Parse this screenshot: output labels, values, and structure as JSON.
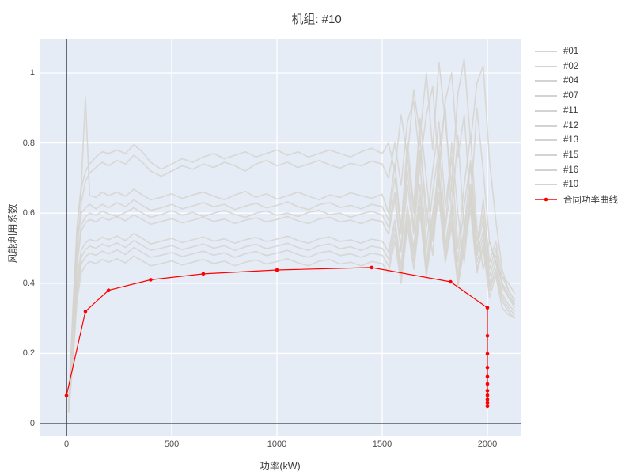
{
  "title": "机组: #10",
  "colors": {
    "page_bg": "#ffffff",
    "plot_bg": "#e5ecf6",
    "grid": "#ffffff",
    "zero_line": "#383e48",
    "gray_series": "#d6d3ce",
    "red_series": "#ff0000",
    "text": "#3b3b3b",
    "tick_text": "#4c4c4c"
  },
  "legend": {
    "items": [
      {
        "label": "#01",
        "type": "gray"
      },
      {
        "label": "#02",
        "type": "gray"
      },
      {
        "label": "#04",
        "type": "gray"
      },
      {
        "label": "#07",
        "type": "gray"
      },
      {
        "label": "#11",
        "type": "gray"
      },
      {
        "label": "#12",
        "type": "gray"
      },
      {
        "label": "#13",
        "type": "gray"
      },
      {
        "label": "#15",
        "type": "gray"
      },
      {
        "label": "#16",
        "type": "gray"
      },
      {
        "label": "#10",
        "type": "gray"
      },
      {
        "label": "合同功率曲线",
        "type": "contract"
      }
    ]
  },
  "chart_data": {
    "type": "line",
    "title": "机组: #10",
    "xlabel": "功率(kW)",
    "ylabel": "风能利用系数",
    "xlim": [
      -128,
      2158
    ],
    "ylim": [
      -0.036,
      1.097
    ],
    "grid": true,
    "legend_position": "right",
    "x_ticks": [
      0,
      500,
      1000,
      1500,
      2000
    ],
    "y_ticks": [
      0,
      0.2,
      0.4,
      0.6,
      0.8,
      1
    ],
    "x": [
      10,
      30,
      50,
      70,
      90,
      110,
      140,
      170,
      200,
      240,
      280,
      320,
      360,
      400,
      450,
      500,
      550,
      600,
      650,
      700,
      750,
      800,
      850,
      900,
      950,
      1000,
      1050,
      1100,
      1150,
      1200,
      1250,
      1300,
      1350,
      1400,
      1450,
      1500,
      1530,
      1560,
      1590,
      1620,
      1650,
      1680,
      1710,
      1740,
      1770,
      1800,
      1830,
      1860,
      1890,
      1920,
      1950,
      1980,
      2010,
      2040,
      2070,
      2100,
      2130
    ],
    "series": [
      {
        "name": "#01",
        "y": [
          0.05,
          0.3,
          0.55,
          0.67,
          0.72,
          0.74,
          0.76,
          0.775,
          0.77,
          0.78,
          0.77,
          0.795,
          0.775,
          0.745,
          0.725,
          0.74,
          0.755,
          0.745,
          0.76,
          0.77,
          0.755,
          0.765,
          0.775,
          0.76,
          0.77,
          0.78,
          0.765,
          0.775,
          0.76,
          0.77,
          0.78,
          0.77,
          0.76,
          0.775,
          0.785,
          0.77,
          0.8,
          0.72,
          0.88,
          0.76,
          0.95,
          0.82,
          1.0,
          0.78,
          1.03,
          0.86,
          0.68,
          0.94,
          1.04,
          0.8,
          0.97,
          1.02,
          0.75,
          0.58,
          0.44,
          0.38,
          0.35
        ]
      },
      {
        "name": "#02",
        "y": [
          0.045,
          0.27,
          0.5,
          0.63,
          0.69,
          0.715,
          0.73,
          0.745,
          0.735,
          0.75,
          0.74,
          0.765,
          0.745,
          0.72,
          0.705,
          0.72,
          0.735,
          0.725,
          0.74,
          0.73,
          0.745,
          0.735,
          0.72,
          0.74,
          0.75,
          0.735,
          0.745,
          0.73,
          0.74,
          0.75,
          0.738,
          0.728,
          0.742,
          0.735,
          0.748,
          0.74,
          0.7,
          0.8,
          0.68,
          0.86,
          0.92,
          0.74,
          0.88,
          0.96,
          0.72,
          0.92,
          1.0,
          0.76,
          0.88,
          0.62,
          0.9,
          0.72,
          0.52,
          0.46,
          0.42,
          0.4,
          0.37
        ]
      },
      {
        "name": "#04",
        "y": [
          0.05,
          0.32,
          0.56,
          0.68,
          0.93,
          0.65,
          0.645,
          0.66,
          0.65,
          0.66,
          0.648,
          0.668,
          0.652,
          0.638,
          0.645,
          0.655,
          0.642,
          0.652,
          0.66,
          0.648,
          0.638,
          0.652,
          0.662,
          0.645,
          0.655,
          0.64,
          0.65,
          0.66,
          0.648,
          0.638,
          0.652,
          0.645,
          0.658,
          0.65,
          0.642,
          0.654,
          0.6,
          0.74,
          0.56,
          0.8,
          0.62,
          0.87,
          0.7,
          0.52,
          0.78,
          0.9,
          0.6,
          0.82,
          0.55,
          0.74,
          0.48,
          0.64,
          0.46,
          0.52,
          0.42,
          0.38,
          0.35
        ]
      },
      {
        "name": "#07",
        "y": [
          0.045,
          0.28,
          0.51,
          0.6,
          0.615,
          0.625,
          0.612,
          0.625,
          0.615,
          0.63,
          0.618,
          0.638,
          0.622,
          0.608,
          0.615,
          0.625,
          0.612,
          0.62,
          0.63,
          0.618,
          0.625,
          0.61,
          0.62,
          0.628,
          0.615,
          0.622,
          0.632,
          0.618,
          0.61,
          0.624,
          0.63,
          0.616,
          0.622,
          0.612,
          0.625,
          0.618,
          0.58,
          0.7,
          0.54,
          0.76,
          0.6,
          0.82,
          0.56,
          0.72,
          0.86,
          0.62,
          0.76,
          0.5,
          0.68,
          0.82,
          0.56,
          0.44,
          0.52,
          0.46,
          0.4,
          0.37,
          0.34
        ]
      },
      {
        "name": "#11",
        "y": [
          0.04,
          0.25,
          0.47,
          0.565,
          0.59,
          0.6,
          0.594,
          0.605,
          0.598,
          0.59,
          0.602,
          0.615,
          0.6,
          0.588,
          0.596,
          0.607,
          0.594,
          0.602,
          0.59,
          0.6,
          0.608,
          0.596,
          0.588,
          0.6,
          0.606,
          0.594,
          0.6,
          0.59,
          0.602,
          0.608,
          0.596,
          0.6,
          0.588,
          0.598,
          0.605,
          0.595,
          0.56,
          0.66,
          0.5,
          0.72,
          0.56,
          0.78,
          0.62,
          0.48,
          0.7,
          0.55,
          0.8,
          0.6,
          0.46,
          0.66,
          0.5,
          0.58,
          0.42,
          0.48,
          0.4,
          0.36,
          0.34
        ]
      },
      {
        "name": "#12",
        "y": [
          0.04,
          0.23,
          0.45,
          0.55,
          0.572,
          0.582,
          0.575,
          0.588,
          0.58,
          0.59,
          0.578,
          0.595,
          0.582,
          0.568,
          0.576,
          0.584,
          0.572,
          0.58,
          0.588,
          0.576,
          0.583,
          0.57,
          0.58,
          0.587,
          0.575,
          0.582,
          0.59,
          0.578,
          0.57,
          0.583,
          0.588,
          0.575,
          0.58,
          0.57,
          0.582,
          0.576,
          0.54,
          0.64,
          0.49,
          0.68,
          0.54,
          0.74,
          0.5,
          0.66,
          0.78,
          0.56,
          0.68,
          0.46,
          0.62,
          0.75,
          0.52,
          0.6,
          0.44,
          0.5,
          0.39,
          0.36,
          0.33
        ]
      },
      {
        "name": "#13",
        "y": [
          0.035,
          0.21,
          0.41,
          0.495,
          0.515,
          0.525,
          0.52,
          0.532,
          0.524,
          0.535,
          0.522,
          0.542,
          0.528,
          0.512,
          0.52,
          0.528,
          0.516,
          0.524,
          0.532,
          0.52,
          0.527,
          0.514,
          0.524,
          0.531,
          0.519,
          0.526,
          0.534,
          0.522,
          0.514,
          0.527,
          0.532,
          0.519,
          0.524,
          0.514,
          0.526,
          0.52,
          0.49,
          0.58,
          0.45,
          0.62,
          0.5,
          0.68,
          0.46,
          0.6,
          0.72,
          0.51,
          0.62,
          0.43,
          0.56,
          0.68,
          0.48,
          0.55,
          0.4,
          0.46,
          0.37,
          0.34,
          0.32
        ]
      },
      {
        "name": "#15",
        "y": [
          0.035,
          0.2,
          0.39,
          0.475,
          0.496,
          0.506,
          0.5,
          0.512,
          0.504,
          0.515,
          0.502,
          0.522,
          0.508,
          0.494,
          0.5,
          0.508,
          0.496,
          0.504,
          0.512,
          0.5,
          0.507,
          0.494,
          0.504,
          0.511,
          0.499,
          0.506,
          0.514,
          0.502,
          0.494,
          0.507,
          0.512,
          0.499,
          0.504,
          0.494,
          0.506,
          0.5,
          0.47,
          0.56,
          0.43,
          0.6,
          0.48,
          0.65,
          0.44,
          0.58,
          0.69,
          0.49,
          0.6,
          0.41,
          0.54,
          0.65,
          0.46,
          0.53,
          0.39,
          0.44,
          0.36,
          0.33,
          0.31
        ]
      },
      {
        "name": "#16",
        "y": [
          0.03,
          0.19,
          0.37,
          0.455,
          0.476,
          0.486,
          0.48,
          0.492,
          0.484,
          0.495,
          0.482,
          0.502,
          0.488,
          0.474,
          0.48,
          0.488,
          0.476,
          0.484,
          0.492,
          0.48,
          0.487,
          0.474,
          0.484,
          0.491,
          0.479,
          0.486,
          0.494,
          0.482,
          0.474,
          0.487,
          0.492,
          0.479,
          0.484,
          0.474,
          0.486,
          0.48,
          0.45,
          0.54,
          0.42,
          0.58,
          0.46,
          0.62,
          0.43,
          0.56,
          0.66,
          0.47,
          0.58,
          0.4,
          0.52,
          0.63,
          0.44,
          0.51,
          0.38,
          0.43,
          0.35,
          0.32,
          0.3
        ]
      },
      {
        "name": "#10",
        "y": [
          0.03,
          0.17,
          0.35,
          0.43,
          0.452,
          0.462,
          0.456,
          0.468,
          0.46,
          0.47,
          0.458,
          0.478,
          0.464,
          0.45,
          0.456,
          0.464,
          0.452,
          0.46,
          0.468,
          0.456,
          0.463,
          0.45,
          0.46,
          0.467,
          0.455,
          0.462,
          0.47,
          0.458,
          0.45,
          0.463,
          0.468,
          0.455,
          0.46,
          0.45,
          0.462,
          0.456,
          0.43,
          0.52,
          0.4,
          0.56,
          0.44,
          0.6,
          0.42,
          0.54,
          0.64,
          0.46,
          0.56,
          0.39,
          0.5,
          0.61,
          0.43,
          0.5,
          0.36,
          0.42,
          0.33,
          0.31,
          0.3
        ]
      }
    ],
    "contract_curve": {
      "name": "合同功率曲线",
      "x": [
        0,
        90,
        200,
        400,
        650,
        1000,
        1450,
        1825,
        2000,
        2000,
        2000,
        2000,
        2000,
        2000,
        2000,
        2000,
        2000,
        2000,
        2000
      ],
      "y": [
        0.08,
        0.32,
        0.38,
        0.41,
        0.427,
        0.438,
        0.445,
        0.404,
        0.33,
        0.25,
        0.199,
        0.16,
        0.134,
        0.113,
        0.094,
        0.081,
        0.069,
        0.059,
        0.05
      ]
    }
  }
}
